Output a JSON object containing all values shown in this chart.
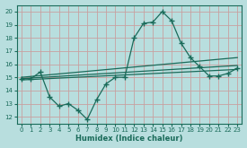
{
  "xlabel": "Humidex (Indice chaleur)",
  "xlim": [
    -0.5,
    23.5
  ],
  "ylim": [
    11.5,
    20.5
  ],
  "xticks": [
    0,
    1,
    2,
    3,
    4,
    5,
    6,
    7,
    8,
    9,
    10,
    11,
    12,
    13,
    14,
    15,
    16,
    17,
    18,
    19,
    20,
    21,
    22,
    23
  ],
  "yticks": [
    12,
    13,
    14,
    15,
    16,
    17,
    18,
    19,
    20
  ],
  "bg_color": "#b8dede",
  "grid_color": "#c8a0a0",
  "line_color": "#1a6b5a",
  "curve1_x": [
    0,
    1,
    2,
    3,
    4,
    5,
    6,
    7,
    8,
    9,
    10,
    11,
    12,
    13,
    14,
    15,
    16,
    17,
    18,
    19,
    20,
    21,
    22,
    23
  ],
  "curve1_y": [
    14.9,
    14.9,
    15.4,
    13.5,
    12.8,
    13.0,
    12.5,
    11.8,
    13.3,
    14.5,
    15.0,
    15.0,
    18.0,
    19.1,
    19.2,
    20.0,
    19.3,
    17.6,
    16.5,
    15.8,
    15.1,
    15.1,
    15.3,
    15.7
  ],
  "line2_x": [
    0,
    23
  ],
  "line2_y": [
    15.0,
    16.5
  ],
  "line3_x": [
    0,
    23
  ],
  "line3_y": [
    14.9,
    15.9
  ],
  "line4_x": [
    0,
    23
  ],
  "line4_y": [
    14.8,
    15.6
  ]
}
